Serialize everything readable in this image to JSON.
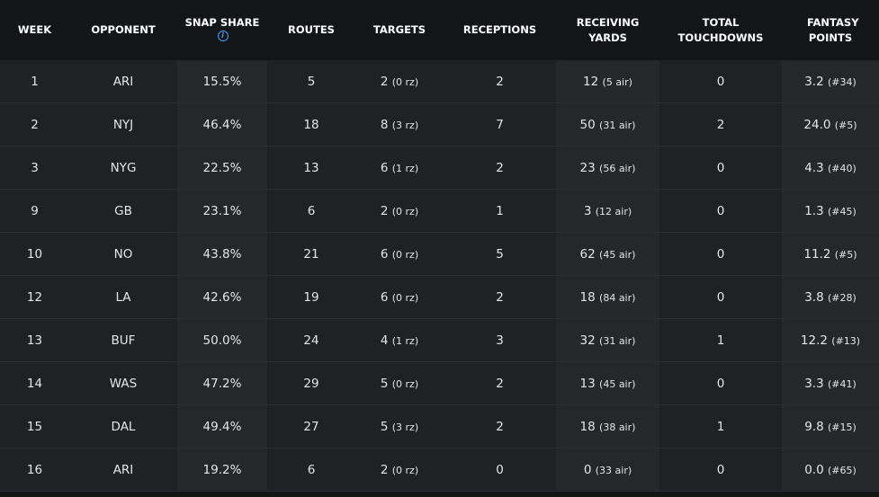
{
  "table": {
    "columns": [
      "WEEK",
      "OPPONENT",
      "SNAP SHARE",
      "ROUTES",
      "TARGETS",
      "RECEPTIONS",
      "RECEIVING YARDS",
      "TOTAL TOUCHDOWNS",
      "FANTASY POINTS"
    ],
    "rows": [
      [
        "1",
        "ARI",
        "15.5%",
        "5",
        {
          "main": "2",
          "sub": "(0 rz)"
        },
        "2",
        {
          "main": "12",
          "sub": "(5 air)"
        },
        "0",
        {
          "main": "3.2",
          "sub": "(#34)"
        }
      ],
      [
        "2",
        "NYJ",
        "46.4%",
        "18",
        {
          "main": "8",
          "sub": "(3 rz)"
        },
        "7",
        {
          "main": "50",
          "sub": "(31 air)"
        },
        "2",
        {
          "main": "24.0",
          "sub": "(#5)"
        }
      ],
      [
        "3",
        "NYG",
        "22.5%",
        "13",
        {
          "main": "6",
          "sub": "(1 rz)"
        },
        "2",
        {
          "main": "23",
          "sub": "(56 air)"
        },
        "0",
        {
          "main": "4.3",
          "sub": "(#40)"
        }
      ],
      [
        "9",
        "GB",
        "23.1%",
        "6",
        {
          "main": "2",
          "sub": "(0 rz)"
        },
        "1",
        {
          "main": "3",
          "sub": "(12 air)"
        },
        "0",
        {
          "main": "1.3",
          "sub": "(#45)"
        }
      ],
      [
        "10",
        "NO",
        "43.8%",
        "21",
        {
          "main": "6",
          "sub": "(0 rz)"
        },
        "5",
        {
          "main": "62",
          "sub": "(45 air)"
        },
        "0",
        {
          "main": "11.2",
          "sub": "(#5)"
        }
      ],
      [
        "12",
        "LA",
        "42.6%",
        "19",
        {
          "main": "6",
          "sub": "(0 rz)"
        },
        "2",
        {
          "main": "18",
          "sub": "(84 air)"
        },
        "0",
        {
          "main": "3.8",
          "sub": "(#28)"
        }
      ],
      [
        "13",
        "BUF",
        "50.0%",
        "24",
        {
          "main": "4",
          "sub": "(1 rz)"
        },
        "3",
        {
          "main": "32",
          "sub": "(31 air)"
        },
        "1",
        {
          "main": "12.2",
          "sub": "(#13)"
        }
      ],
      [
        "14",
        "WAS",
        "47.2%",
        "29",
        {
          "main": "5",
          "sub": "(0 rz)"
        },
        "2",
        {
          "main": "13",
          "sub": "(45 air)"
        },
        "0",
        {
          "main": "3.3",
          "sub": "(#41)"
        }
      ],
      [
        "15",
        "DAL",
        "49.4%",
        "27",
        {
          "main": "5",
          "sub": "(3 rz)"
        },
        "2",
        {
          "main": "18",
          "sub": "(38 air)"
        },
        "1",
        {
          "main": "9.8",
          "sub": "(#15)"
        }
      ],
      [
        "16",
        "ARI",
        "19.2%",
        "6",
        {
          "main": "2",
          "sub": "(0 rz)"
        },
        "0",
        {
          "main": "0",
          "sub": "(33 air)"
        },
        "0",
        {
          "main": "0.0",
          "sub": "(#65)"
        }
      ]
    ]
  }
}
